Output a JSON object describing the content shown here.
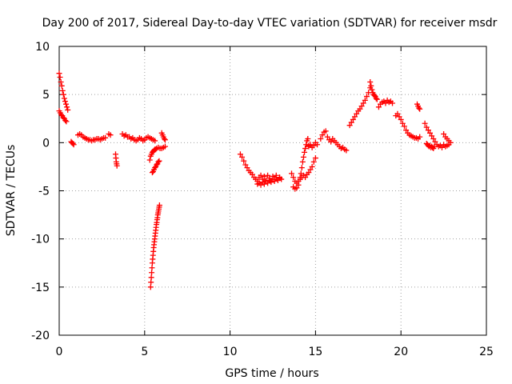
{
  "chart_data": {
    "type": "scatter",
    "title": "Day 200 of 2017, Sidereal Day-to-day VTEC variation (SDTVAR) for receiver msdr",
    "xlabel": "GPS time / hours",
    "ylabel": "SDTVAR / TECUs",
    "xlim": [
      0,
      25
    ],
    "ylim": [
      -20,
      10
    ],
    "xticks": [
      0,
      5,
      10,
      15,
      20,
      25
    ],
    "yticks": [
      -20,
      -15,
      -10,
      -5,
      0,
      5,
      10
    ],
    "grid": true,
    "marker": "+",
    "series_color": "#ff0000",
    "series": [
      {
        "name": "SDTVAR",
        "x": [],
        "y": []
      }
    ],
    "segments": [
      {
        "x": [
          0.0,
          0.05,
          0.1,
          0.15,
          0.2,
          0.25,
          0.3,
          0.35,
          0.4,
          0.45,
          0.5
        ],
        "y": [
          7.2,
          6.8,
          6.3,
          5.9,
          5.4,
          5.0,
          4.6,
          4.3,
          4.0,
          3.7,
          3.4
        ]
      },
      {
        "x": [
          0.0,
          0.06,
          0.12,
          0.18,
          0.24,
          0.3,
          0.36,
          0.42
        ],
        "y": [
          3.3,
          3.1,
          2.9,
          2.8,
          2.6,
          2.5,
          2.3,
          2.2
        ]
      },
      {
        "x": [
          0.7,
          0.75,
          0.8,
          0.85
        ],
        "y": [
          0.1,
          0.0,
          -0.1,
          -0.2
        ]
      },
      {
        "x": [
          1.1,
          1.2,
          1.3,
          1.4,
          1.5,
          1.6,
          1.7,
          1.8,
          1.9,
          2.0,
          2.1,
          2.2,
          2.3,
          2.4,
          2.5,
          2.6,
          2.7
        ],
        "y": [
          0.8,
          0.9,
          0.8,
          0.6,
          0.5,
          0.4,
          0.3,
          0.3,
          0.2,
          0.3,
          0.3,
          0.4,
          0.4,
          0.3,
          0.4,
          0.5,
          0.5
        ]
      },
      {
        "x": [
          2.9,
          3.0
        ],
        "y": [
          0.9,
          0.8
        ]
      },
      {
        "x": [
          3.3,
          3.32,
          3.34,
          3.36,
          3.38
        ],
        "y": [
          -1.2,
          -1.6,
          -2.0,
          -2.2,
          -2.4
        ]
      },
      {
        "x": [
          3.7,
          3.8,
          3.9,
          4.0,
          4.1,
          4.2,
          4.3,
          4.4,
          4.5,
          4.6,
          4.7,
          4.8,
          4.9,
          5.0,
          5.1,
          5.2,
          5.3,
          5.4,
          5.5,
          5.6
        ],
        "y": [
          0.9,
          0.7,
          0.8,
          0.6,
          0.6,
          0.4,
          0.5,
          0.3,
          0.2,
          0.3,
          0.5,
          0.4,
          0.2,
          0.3,
          0.5,
          0.6,
          0.5,
          0.4,
          0.3,
          0.2
        ]
      },
      {
        "x": [
          5.3,
          5.35,
          5.4,
          5.45,
          5.5,
          5.55,
          5.6,
          5.65,
          5.7,
          5.8,
          5.9,
          6.0,
          6.1,
          6.2
        ],
        "y": [
          -1.8,
          -1.4,
          -1.2,
          -1.0,
          -0.9,
          -0.8,
          -0.7,
          -0.7,
          -0.6,
          -0.5,
          -0.6,
          -0.6,
          -0.5,
          -0.4
        ]
      },
      {
        "x": [
          6.0,
          6.05,
          6.1,
          6.15,
          6.2
        ],
        "y": [
          1.0,
          0.8,
          0.6,
          0.4,
          0.3
        ]
      },
      {
        "x": [
          5.45,
          5.5,
          5.55,
          5.6,
          5.65,
          5.7,
          5.75,
          5.8,
          5.85
        ],
        "y": [
          -3.1,
          -3.0,
          -2.8,
          -2.6,
          -2.5,
          -2.3,
          -2.2,
          -2.0,
          -1.9
        ]
      },
      {
        "x": [
          5.35,
          5.37,
          5.39,
          5.41,
          5.43,
          5.45,
          5.47,
          5.49,
          5.51,
          5.53,
          5.55,
          5.57,
          5.59,
          5.61,
          5.63,
          5.65,
          5.67,
          5.69,
          5.71,
          5.73,
          5.75,
          5.77,
          5.79,
          5.81,
          5.83,
          5.85,
          5.87
        ],
        "y": [
          -15.0,
          -14.5,
          -14.0,
          -13.5,
          -13.0,
          -12.5,
          -12.1,
          -11.7,
          -11.3,
          -10.9,
          -10.6,
          -10.3,
          -10.0,
          -9.7,
          -9.4,
          -9.1,
          -8.8,
          -8.5,
          -8.3,
          -8.0,
          -7.8,
          -7.5,
          -7.3,
          -7.1,
          -6.9,
          -6.7,
          -6.5
        ]
      },
      {
        "x": [
          10.6,
          10.7,
          10.8,
          10.9,
          11.0,
          11.1,
          11.2,
          11.3,
          11.4,
          11.5,
          11.6,
          11.7,
          11.8,
          11.9,
          12.0,
          12.1,
          12.2,
          12.3,
          12.4,
          12.5,
          12.6,
          12.7,
          12.8,
          12.9,
          13.0,
          11.6,
          11.7,
          11.8,
          11.9,
          12.0,
          12.1,
          12.2,
          12.3,
          12.4,
          12.5,
          12.6,
          12.7,
          12.8,
          12.9
        ],
        "y": [
          -1.2,
          -1.5,
          -1.9,
          -2.3,
          -2.6,
          -2.9,
          -3.1,
          -3.3,
          -3.6,
          -3.8,
          -4.0,
          -3.6,
          -3.4,
          -3.8,
          -3.5,
          -3.9,
          -3.4,
          -3.7,
          -4.0,
          -3.5,
          -3.8,
          -3.4,
          -3.9,
          -3.6,
          -3.8,
          -4.3,
          -4.2,
          -4.4,
          -4.1,
          -4.3,
          -4.0,
          -4.2,
          -3.9,
          -4.1,
          -3.8,
          -4.0,
          -3.6,
          -3.9,
          -3.7
        ]
      },
      {
        "x": [
          13.6,
          13.7,
          13.8,
          13.9,
          14.0,
          14.1,
          14.2,
          14.3,
          14.4,
          14.5,
          14.6,
          14.7,
          14.8,
          14.9,
          15.0,
          13.7,
          13.8,
          13.9,
          14.0
        ],
        "y": [
          -3.2,
          -3.6,
          -4.0,
          -4.2,
          -4.0,
          -3.8,
          -3.6,
          -3.4,
          -3.6,
          -3.3,
          -3.1,
          -2.8,
          -2.5,
          -2.0,
          -1.6,
          -4.6,
          -4.8,
          -4.7,
          -4.4
        ]
      },
      {
        "x": [
          14.1,
          14.15,
          14.2,
          14.25,
          14.3,
          14.35,
          14.4,
          14.45,
          14.5,
          14.55,
          14.6
        ],
        "y": [
          -3.6,
          -3.2,
          -2.6,
          -2.0,
          -1.5,
          -1.0,
          -0.6,
          -0.2,
          0.2,
          0.4,
          -0.3
        ]
      },
      {
        "x": [
          14.6,
          14.7,
          14.8,
          14.9,
          15.0,
          15.1
        ],
        "y": [
          -0.4,
          -0.2,
          -0.5,
          -0.3,
          0.0,
          -0.2
        ]
      },
      {
        "x": [
          15.3,
          15.4,
          15.5,
          15.6,
          15.7,
          15.8,
          15.9,
          16.0,
          16.1,
          16.2,
          16.3,
          16.4,
          16.5,
          16.6,
          16.7,
          16.8
        ],
        "y": [
          0.4,
          0.8,
          1.1,
          1.2,
          0.6,
          0.3,
          0.1,
          0.4,
          0.2,
          0.0,
          -0.2,
          -0.4,
          -0.6,
          -0.5,
          -0.7,
          -0.8
        ]
      },
      {
        "x": [
          17.0,
          17.1,
          17.2,
          17.3,
          17.4,
          17.5,
          17.6,
          17.7,
          17.8,
          17.9,
          18.0,
          18.1,
          18.2
        ],
        "y": [
          1.8,
          2.1,
          2.4,
          2.7,
          3.0,
          3.3,
          3.5,
          3.8,
          4.1,
          4.4,
          4.8,
          5.2,
          5.7
        ]
      },
      {
        "x": [
          18.2,
          18.25,
          18.3,
          18.35,
          18.4,
          18.45,
          18.5,
          18.55,
          18.6
        ],
        "y": [
          6.3,
          5.9,
          5.5,
          5.2,
          5.0,
          4.9,
          4.8,
          4.6,
          4.5
        ]
      },
      {
        "x": [
          18.7,
          18.8,
          18.9,
          19.0,
          19.1,
          19.2,
          19.3,
          19.4,
          19.5
        ],
        "y": [
          3.7,
          4.0,
          4.2,
          4.3,
          4.1,
          4.4,
          4.2,
          4.3,
          4.1
        ]
      },
      {
        "x": [
          19.7,
          19.8,
          19.9,
          20.0,
          20.1,
          20.2,
          20.3,
          20.4,
          20.5,
          20.6,
          20.7,
          20.8,
          20.9,
          21.0,
          21.1
        ],
        "y": [
          2.8,
          3.0,
          2.7,
          2.4,
          2.0,
          1.7,
          1.3,
          1.0,
          0.8,
          0.7,
          0.6,
          0.5,
          0.5,
          0.4,
          0.6
        ]
      },
      {
        "x": [
          20.95,
          21.0,
          21.05,
          21.1
        ],
        "y": [
          4.0,
          3.8,
          3.6,
          3.5
        ]
      },
      {
        "x": [
          21.4,
          21.5,
          21.6,
          21.7,
          21.8,
          21.9,
          22.0,
          22.1,
          22.2,
          22.3,
          22.4,
          22.5,
          22.6,
          22.7,
          22.8
        ],
        "y": [
          2.0,
          1.6,
          1.3,
          1.0,
          0.7,
          0.4,
          0.1,
          -0.2,
          -0.4,
          -0.3,
          -0.5,
          -0.2,
          -0.4,
          -0.3,
          -0.2
        ]
      },
      {
        "x": [
          21.5,
          21.55,
          21.6,
          21.65,
          21.7,
          21.75,
          21.8,
          21.85,
          21.9,
          21.95
        ],
        "y": [
          -0.1,
          -0.2,
          -0.3,
          -0.4,
          -0.3,
          -0.5,
          -0.4,
          -0.5,
          -0.6,
          -0.4
        ]
      },
      {
        "x": [
          22.5,
          22.6,
          22.7,
          22.8,
          22.9
        ],
        "y": [
          0.9,
          0.6,
          0.4,
          0.2,
          0.0
        ]
      }
    ]
  }
}
